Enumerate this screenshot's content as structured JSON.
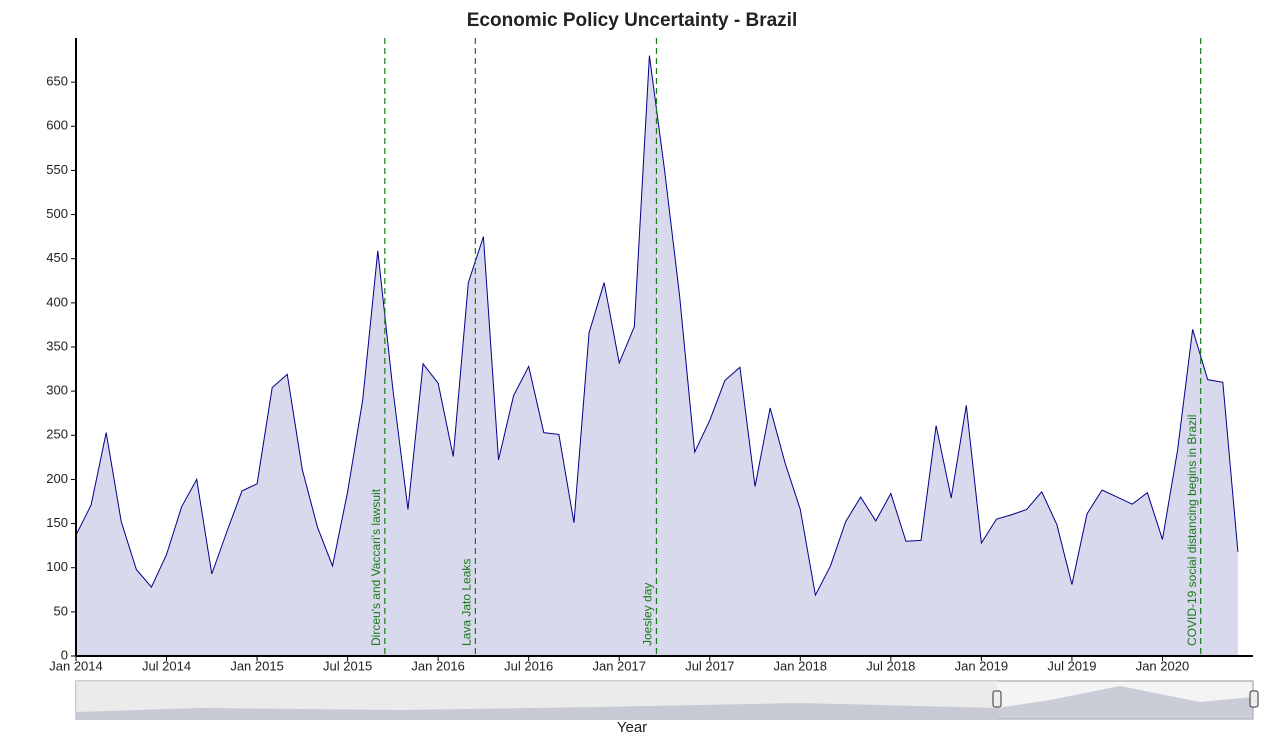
{
  "chart_data": {
    "type": "area",
    "title": "Economic Policy Uncertainty - Brazil",
    "x_label": "Year",
    "x": [
      "2014-01",
      "2014-02",
      "2014-03",
      "2014-04",
      "2014-05",
      "2014-06",
      "2014-07",
      "2014-08",
      "2014-09",
      "2014-10",
      "2014-11",
      "2014-12",
      "2015-01",
      "2015-02",
      "2015-03",
      "2015-04",
      "2015-05",
      "2015-06",
      "2015-07",
      "2015-08",
      "2015-09",
      "2015-10",
      "2015-11",
      "2015-12",
      "2016-01",
      "2016-02",
      "2016-03",
      "2016-04",
      "2016-05",
      "2016-06",
      "2016-07",
      "2016-08",
      "2016-09",
      "2016-10",
      "2016-11",
      "2016-12",
      "2017-01",
      "2017-02",
      "2017-03",
      "2017-04",
      "2017-05",
      "2017-06",
      "2017-07",
      "2017-08",
      "2017-09",
      "2017-10",
      "2017-11",
      "2017-12",
      "2018-01",
      "2018-02",
      "2018-03",
      "2018-04",
      "2018-05",
      "2018-06",
      "2018-07",
      "2018-08",
      "2018-09",
      "2018-10",
      "2018-11",
      "2018-12",
      "2019-01",
      "2019-02",
      "2019-03",
      "2019-04",
      "2019-05",
      "2019-06",
      "2019-07",
      "2019-08",
      "2019-09",
      "2019-10",
      "2019-11",
      "2019-12",
      "2020-01",
      "2020-02",
      "2020-03",
      "2020-04",
      "2020-05",
      "2020-06"
    ],
    "values": [
      137,
      171,
      253,
      152,
      98,
      78,
      115,
      169,
      200,
      93,
      141,
      187,
      195,
      304,
      319,
      211,
      146,
      102,
      186,
      290,
      459,
      302,
      166,
      331,
      309,
      226,
      423,
      475,
      222,
      295,
      328,
      253,
      251,
      151,
      366,
      423,
      332,
      373,
      680,
      551,
      408,
      231,
      267,
      312,
      327,
      192,
      281,
      218,
      166,
      69,
      102,
      152,
      180,
      153,
      184,
      130,
      131,
      261,
      179,
      284,
      128,
      155,
      160,
      166,
      186,
      149,
      81,
      161,
      188,
      180,
      172,
      185,
      132,
      233,
      370,
      313,
      310,
      118
    ],
    "color": "#00008b",
    "fill": "#d8d9ec",
    "xlim": [
      "2014-01",
      "2020-07"
    ],
    "xticks": [
      {
        "value": "2014-01",
        "label": "Jan 2014"
      },
      {
        "value": "2014-07",
        "label": "Jul 2014"
      },
      {
        "value": "2015-01",
        "label": "Jan 2015"
      },
      {
        "value": "2015-07",
        "label": "Jul 2015"
      },
      {
        "value": "2016-01",
        "label": "Jan 2016"
      },
      {
        "value": "2016-07",
        "label": "Jul 2016"
      },
      {
        "value": "2017-01",
        "label": "Jan 2017"
      },
      {
        "value": "2017-07",
        "label": "Jul 2017"
      },
      {
        "value": "2018-01",
        "label": "Jan 2018"
      },
      {
        "value": "2018-07",
        "label": "Jul 2018"
      },
      {
        "value": "2019-01",
        "label": "Jan 2019"
      },
      {
        "value": "2019-07",
        "label": "Jul 2019"
      },
      {
        "value": "2020-01",
        "label": "Jan 2020"
      }
    ],
    "ylim": [
      0,
      700
    ],
    "yticks": [
      0,
      50,
      100,
      150,
      200,
      250,
      300,
      350,
      400,
      450,
      500,
      550,
      600,
      650
    ],
    "grid": false,
    "annotations": [
      {
        "x": "2015-09-15",
        "text": "Dirceu's and Vaccari's lawsuit"
      },
      {
        "x": "2016-03-15",
        "text": "Lava Jato Leaks"
      },
      {
        "x": "2017-03-15",
        "text": "Joesley day"
      },
      {
        "x": "2020-03-17",
        "text": "COVID-19 social distancing begins in Brazil"
      }
    ],
    "annotation_color": "#1a7a1a"
  }
}
